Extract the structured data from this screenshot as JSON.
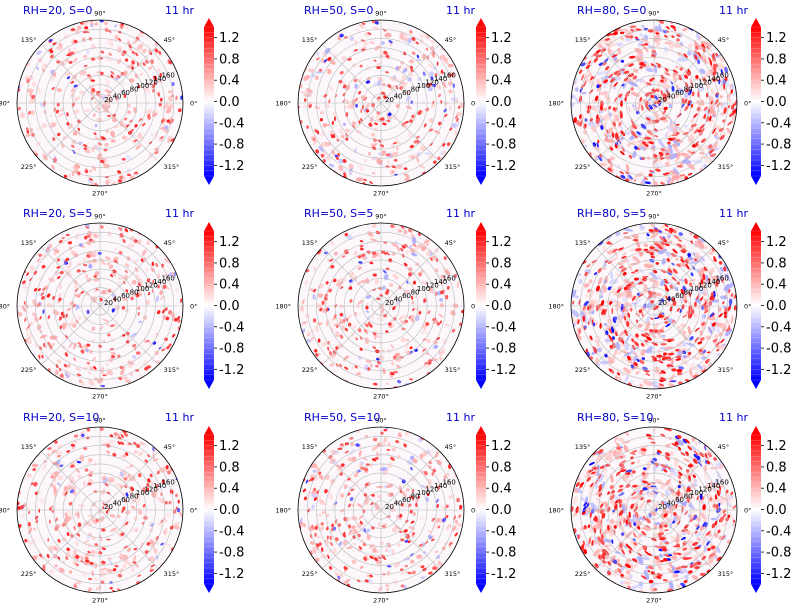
{
  "figure": {
    "colormap": "bwr",
    "colors": {
      "title": "#0000cc",
      "neg_extreme": "#0000ff",
      "zero": "#ffffff",
      "pos_extreme": "#ff0000",
      "grid": "#bbbbbb"
    }
  },
  "chart_data": [
    {
      "type": "heatmap",
      "projection": "polar",
      "title": "RH=20, S=0",
      "time_label": "11 hr",
      "field": "scattered red droplets, weak blue background",
      "density": 0.35,
      "blue_fraction": 0.08,
      "intensity": 0.9,
      "theta_tick_labels": [
        "0°",
        "45°",
        "90°",
        "135°",
        "180°",
        "225°",
        "270°",
        "315°"
      ],
      "r_tick_labels": [
        "20",
        "40",
        "60",
        "80",
        "100",
        "120",
        "140",
        "160"
      ],
      "rlim": [
        0,
        180
      ],
      "colorbar": {
        "ticks": [
          "1.2",
          "0.8",
          "0.4",
          "0.0",
          "-0.4",
          "-0.8",
          "-1.2"
        ],
        "vmin": -1.4,
        "vmax": 1.4,
        "extend": "both"
      }
    },
    {
      "type": "heatmap",
      "projection": "polar",
      "title": "RH=50, S=0",
      "time_label": "11 hr",
      "field": "scattered red droplets, weak blue background",
      "density": 0.35,
      "blue_fraction": 0.15,
      "intensity": 0.9,
      "theta_tick_labels": [
        "0°",
        "45°",
        "90°",
        "135°",
        "180°",
        "225°",
        "270°",
        "315°"
      ],
      "r_tick_labels": [
        "20",
        "40",
        "60",
        "80",
        "100",
        "120",
        "140",
        "160"
      ],
      "rlim": [
        0,
        180
      ],
      "colorbar": {
        "ticks": [
          "1.2",
          "0.8",
          "0.4",
          "0.0",
          "-0.4",
          "-0.8",
          "-1.2"
        ],
        "vmin": -1.4,
        "vmax": 1.4,
        "extend": "both"
      }
    },
    {
      "type": "heatmap",
      "projection": "polar",
      "title": "RH=80, S=0",
      "time_label": "11 hr",
      "field": "dense red filaments with blue patches",
      "density": 1.0,
      "blue_fraction": 0.3,
      "intensity": 1.0,
      "theta_tick_labels": [
        "0°",
        "45°",
        "90°",
        "135°",
        "180°",
        "225°",
        "270°",
        "315°"
      ],
      "r_tick_labels": [
        "20",
        "40",
        "60",
        "80",
        "100",
        "120",
        "140",
        "160"
      ],
      "rlim": [
        0,
        180
      ],
      "colorbar": {
        "ticks": [
          "1.2",
          "0.8",
          "0.4",
          "0.0",
          "-0.4",
          "-0.8",
          "-1.2"
        ],
        "vmin": -1.4,
        "vmax": 1.4,
        "extend": "both"
      }
    },
    {
      "type": "heatmap",
      "projection": "polar",
      "title": "RH=20, S=5",
      "time_label": "11 hr",
      "field": "scattered red droplets, weak blue background",
      "density": 0.35,
      "blue_fraction": 0.08,
      "intensity": 0.9,
      "theta_tick_labels": [
        "0°",
        "45°",
        "90°",
        "135°",
        "180°",
        "225°",
        "270°",
        "315°"
      ],
      "r_tick_labels": [
        "20",
        "40",
        "60",
        "80",
        "100",
        "120",
        "140",
        "160"
      ],
      "rlim": [
        0,
        180
      ],
      "colorbar": {
        "ticks": [
          "1.2",
          "0.8",
          "0.4",
          "0.0",
          "-0.4",
          "-0.8",
          "-1.2"
        ],
        "vmin": -1.4,
        "vmax": 1.4,
        "extend": "both"
      }
    },
    {
      "type": "heatmap",
      "projection": "polar",
      "title": "RH=50, S=5",
      "time_label": "11 hr",
      "field": "scattered red droplets, weak blue background",
      "density": 0.35,
      "blue_fraction": 0.15,
      "intensity": 0.9,
      "theta_tick_labels": [
        "0°",
        "45°",
        "90°",
        "135°",
        "180°",
        "225°",
        "270°",
        "315°"
      ],
      "r_tick_labels": [
        "20",
        "40",
        "60",
        "80",
        "100",
        "120",
        "140",
        "160"
      ],
      "rlim": [
        0,
        180
      ],
      "colorbar": {
        "ticks": [
          "1.2",
          "0.8",
          "0.4",
          "0.0",
          "-0.4",
          "-0.8",
          "-1.2"
        ],
        "vmin": -1.4,
        "vmax": 1.4,
        "extend": "both"
      }
    },
    {
      "type": "heatmap",
      "projection": "polar",
      "title": "RH=80, S=5",
      "time_label": "11 hr",
      "field": "dense red filaments with blue patches",
      "density": 1.0,
      "blue_fraction": 0.3,
      "intensity": 1.0,
      "theta_tick_labels": [
        "0°",
        "45°",
        "90°",
        "135°",
        "180°",
        "225°",
        "270°",
        "315°"
      ],
      "r_tick_labels": [
        "20",
        "40",
        "60",
        "80",
        "100",
        "120",
        "140",
        "160"
      ],
      "rlim": [
        0,
        180
      ],
      "colorbar": {
        "ticks": [
          "1.2",
          "0.8",
          "0.4",
          "0.0",
          "-0.4",
          "-0.8",
          "-1.2"
        ],
        "vmin": -1.4,
        "vmax": 1.4,
        "extend": "both"
      }
    },
    {
      "type": "heatmap",
      "projection": "polar",
      "title": "RH=20, S=10",
      "time_label": "11 hr",
      "field": "scattered red droplets, weak blue background",
      "density": 0.38,
      "blue_fraction": 0.08,
      "intensity": 0.9,
      "theta_tick_labels": [
        "0°",
        "45°",
        "90°",
        "135°",
        "180°",
        "225°",
        "270°",
        "315°"
      ],
      "r_tick_labels": [
        "20",
        "40",
        "60",
        "80",
        "100",
        "120",
        "140",
        "160"
      ],
      "rlim": [
        0,
        180
      ],
      "colorbar": {
        "ticks": [
          "1.2",
          "0.8",
          "0.4",
          "0.0",
          "-0.4",
          "-0.8",
          "-1.2"
        ],
        "vmin": -1.4,
        "vmax": 1.4,
        "extend": "both"
      }
    },
    {
      "type": "heatmap",
      "projection": "polar",
      "title": "RH=50, S=10",
      "time_label": "11 hr",
      "field": "scattered red droplets, weak blue background",
      "density": 0.38,
      "blue_fraction": 0.15,
      "intensity": 0.9,
      "theta_tick_labels": [
        "0°",
        "45°",
        "90°",
        "135°",
        "180°",
        "225°",
        "270°",
        "315°"
      ],
      "r_tick_labels": [
        "20",
        "40",
        "60",
        "80",
        "100",
        "120",
        "140",
        "160"
      ],
      "rlim": [
        0,
        180
      ],
      "colorbar": {
        "ticks": [
          "1.2",
          "0.8",
          "0.4",
          "0.0",
          "-0.4",
          "-0.8",
          "-1.2"
        ],
        "vmin": -1.4,
        "vmax": 1.4,
        "extend": "both"
      }
    },
    {
      "type": "heatmap",
      "projection": "polar",
      "title": "RH=80, S=10",
      "time_label": "11 hr",
      "field": "dense red filaments with blue patches",
      "density": 1.0,
      "blue_fraction": 0.3,
      "intensity": 1.0,
      "theta_tick_labels": [
        "0°",
        "45°",
        "90°",
        "135°",
        "180°",
        "225°",
        "270°",
        "315°"
      ],
      "r_tick_labels": [
        "20",
        "40",
        "60",
        "80",
        "100",
        "120",
        "140",
        "160"
      ],
      "rlim": [
        0,
        180
      ],
      "colorbar": {
        "ticks": [
          "1.2",
          "0.8",
          "0.4",
          "0.0",
          "-0.4",
          "-0.8",
          "-1.2"
        ],
        "vmin": -1.4,
        "vmax": 1.4,
        "extend": "both"
      }
    }
  ]
}
